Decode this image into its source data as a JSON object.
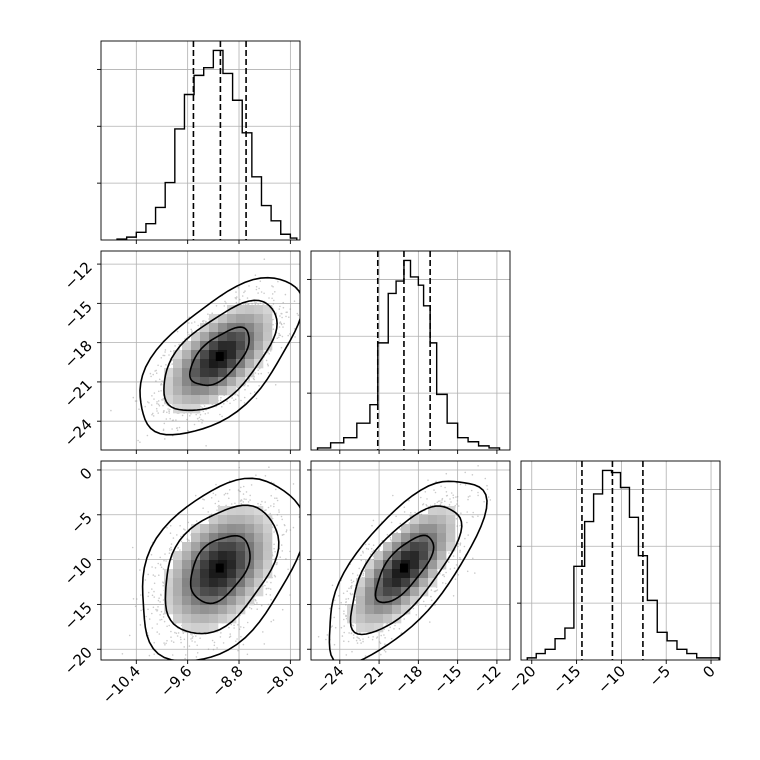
{
  "chart_data": {
    "type": "corner",
    "grid": true,
    "parameters": [
      {
        "index": 0,
        "range": [
          -10.95,
          -7.85
        ],
        "ticks": [
          -10.4,
          -9.6,
          -8.8,
          -8.0
        ],
        "tick_labels": [
          "−10.4",
          "−9.6",
          "−8.8",
          "−8.0"
        ],
        "quantiles": [
          -9.51,
          -9.09,
          -8.69
        ],
        "histogram": {
          "bin_edges": [
            -10.7,
            -10.55,
            -10.4,
            -10.25,
            -10.1,
            -9.95,
            -9.8,
            -9.65,
            -9.5,
            -9.35,
            -9.2,
            -9.05,
            -8.9,
            -8.75,
            -8.6,
            -8.45,
            -8.3,
            -8.15,
            -8.0,
            -7.9
          ],
          "values": [
            0.5,
            1.5,
            4,
            8.5,
            17,
            30,
            58,
            76,
            86,
            90,
            99,
            87,
            73,
            56,
            33,
            18,
            10,
            3,
            1
          ]
        }
      },
      {
        "index": 1,
        "range": [
          -26.2,
          -11.0
        ],
        "ticks": [
          -24,
          -21,
          -18,
          -15,
          -12
        ],
        "tick_labels": [
          "−24",
          "−21",
          "−18",
          "−15",
          "−12"
        ],
        "quantiles": [
          -21.1,
          -19.1,
          -17.1
        ],
        "histogram": {
          "bin_edges": [
            -25.7,
            -24.7,
            -23.7,
            -22.7,
            -21.7,
            -21.1,
            -20.3,
            -19.7,
            -19.1,
            -18.6,
            -18.0,
            -17.6,
            -17.1,
            -16.6,
            -15.8,
            -15.0,
            -14.2,
            -13.4,
            -12.6,
            -11.8
          ],
          "values": [
            1,
            3.5,
            6,
            13,
            22,
            52,
            76,
            82,
            92,
            84,
            80,
            70,
            52,
            27,
            13,
            6,
            4,
            2,
            1
          ]
        }
      },
      {
        "index": 2,
        "range": [
          -21.2,
          1.0
        ],
        "ticks": [
          -20,
          -15,
          -10,
          -5,
          0
        ],
        "tick_labels": [
          "−20",
          "−15",
          "−10",
          "−5",
          "0"
        ],
        "quantiles": [
          -14.4,
          -11.0,
          -7.6
        ],
        "histogram": {
          "bin_edges": [
            -20.5,
            -19.5,
            -18.5,
            -17.4,
            -16.3,
            -15.3,
            -14.1,
            -13.1,
            -12.1,
            -11.1,
            -10.1,
            -9.1,
            -8.1,
            -7.1,
            -6.0,
            -4.9,
            -3.8,
            -2.7,
            -1.6,
            -0.5,
            0.9
          ],
          "values": [
            1,
            3,
            5,
            10,
            15,
            44,
            65,
            78,
            89,
            88,
            81,
            67,
            49,
            28,
            13,
            9,
            5,
            3,
            1,
            1
          ]
        }
      }
    ],
    "density_panels": [
      {
        "x_param": 0,
        "y_param": 1,
        "mean": [
          -9.1,
          -19.1
        ],
        "std": [
          0.42,
          2.0
        ],
        "correlation": 0.6,
        "contour_levels": [
          "inner",
          "mid",
          "outer"
        ]
      },
      {
        "x_param": 0,
        "y_param": 2,
        "mean": [
          -9.1,
          -11.0
        ],
        "std": [
          0.42,
          3.4
        ],
        "correlation": 0.4,
        "contour_levels": [
          "inner",
          "mid",
          "outer"
        ]
      },
      {
        "x_param": 1,
        "y_param": 2,
        "mean": [
          -19.1,
          -11.0
        ],
        "std": [
          2.0,
          3.4
        ],
        "correlation": 0.7,
        "contour_levels": [
          "inner",
          "mid",
          "outer"
        ]
      }
    ]
  }
}
